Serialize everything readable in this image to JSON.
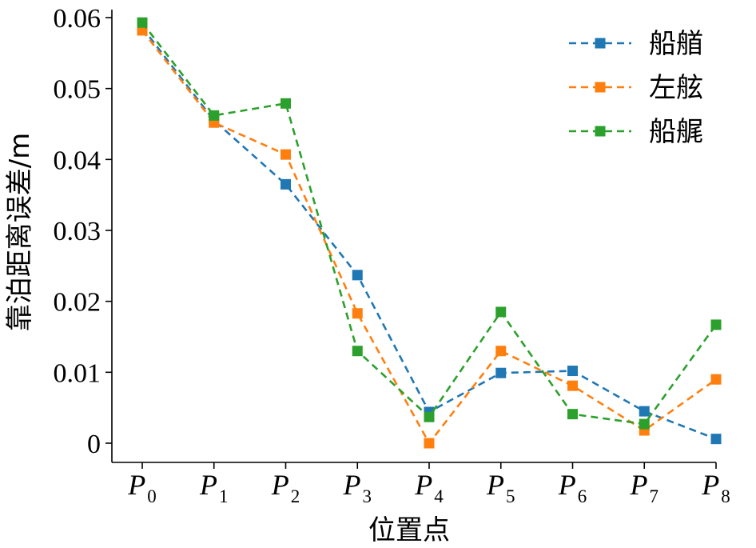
{
  "chart_data": {
    "type": "line",
    "categories": [
      "P0",
      "P1",
      "P2",
      "P3",
      "P4",
      "P5",
      "P6",
      "P7",
      "P8"
    ],
    "category_labels": [
      {
        "base": "P",
        "sub": "0"
      },
      {
        "base": "P",
        "sub": "1"
      },
      {
        "base": "P",
        "sub": "2"
      },
      {
        "base": "P",
        "sub": "3"
      },
      {
        "base": "P",
        "sub": "4"
      },
      {
        "base": "P",
        "sub": "5"
      },
      {
        "base": "P",
        "sub": "6"
      },
      {
        "base": "P",
        "sub": "7"
      },
      {
        "base": "P",
        "sub": "8"
      }
    ],
    "series": [
      {
        "name": "船艏",
        "color": "#1f77b4",
        "values": [
          0.0586,
          0.0455,
          0.0365,
          0.0237,
          0.0044,
          0.0099,
          0.0102,
          0.0045,
          0.0006
        ]
      },
      {
        "name": "左舷",
        "color": "#ff7f0e",
        "values": [
          0.0582,
          0.0452,
          0.0407,
          0.0183,
          0.0,
          0.013,
          0.0081,
          0.0018,
          0.009
        ]
      },
      {
        "name": "船艉",
        "color": "#2ca02c",
        "values": [
          0.0593,
          0.0462,
          0.0479,
          0.013,
          0.0037,
          0.0185,
          0.0041,
          0.0027,
          0.0167
        ]
      }
    ],
    "xlabel": "位置点",
    "ylabel": "靠泊距离误差/m",
    "ylim": [
      0,
      0.06
    ],
    "yticks": [
      0,
      0.01,
      0.02,
      0.03,
      0.04,
      0.05,
      0.06
    ],
    "ytick_labels": [
      "0",
      "0.01",
      "0.02",
      "0.03",
      "0.04",
      "0.05",
      "0.06"
    ],
    "line_style": "dashed",
    "marker": "square",
    "grid": false,
    "legend_position": "top-right"
  }
}
